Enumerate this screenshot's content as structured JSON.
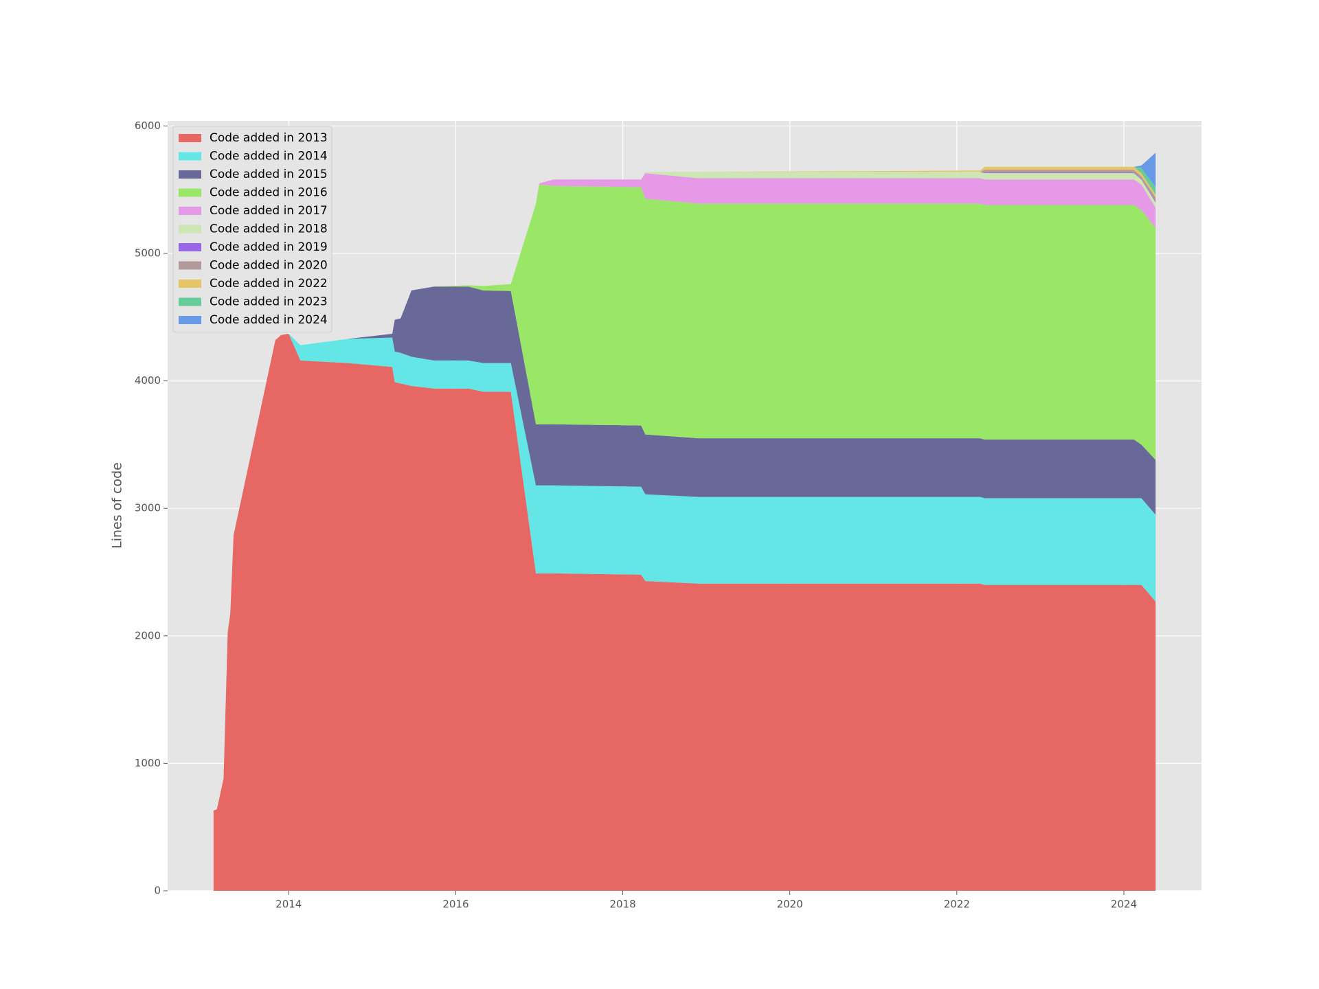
{
  "chart_data": {
    "type": "stackedarea",
    "ylabel": "Lines of code",
    "x": [
      2013.1,
      2013.14,
      2013.22,
      2013.27,
      2013.3,
      2013.34,
      2013.84,
      2013.91,
      2014.0,
      2014.14,
      2014.71,
      2015.24,
      2015.27,
      2015.34,
      2015.47,
      2015.74,
      2016.15,
      2016.33,
      2016.66,
      2016.96,
      2017.0,
      2017.17,
      2018.22,
      2018.27,
      2018.91,
      2022.28,
      2022.33,
      2024.12,
      2024.21,
      2024.38
    ],
    "series": [
      {
        "name": "Code added in 2013",
        "color": "#e66764",
        "values": [
          630,
          640,
          880,
          2030,
          2170,
          2790,
          4320,
          4360,
          4370,
          4160,
          4140,
          4110,
          3990,
          3980,
          3960,
          3940,
          3940,
          3915,
          3915,
          2490,
          2490,
          2490,
          2480,
          2430,
          2410,
          2410,
          2400,
          2400,
          2400,
          2270
        ]
      },
      {
        "name": "Code added in 2014",
        "color": "#64e5e6",
        "values": [
          0,
          0,
          0,
          0,
          0,
          0,
          0,
          0,
          0,
          120,
          190,
          230,
          240,
          240,
          230,
          220,
          220,
          225,
          225,
          690,
          690,
          690,
          690,
          680,
          680,
          680,
          680,
          680,
          680,
          680
        ]
      },
      {
        "name": "Code added in 2015",
        "color": "#686899",
        "values": [
          0,
          0,
          0,
          0,
          0,
          0,
          0,
          0,
          0,
          0,
          0,
          30,
          250,
          270,
          520,
          580,
          580,
          570,
          565,
          480,
          480,
          480,
          480,
          470,
          460,
          460,
          460,
          460,
          420,
          430
        ]
      },
      {
        "name": "Code added in 2016",
        "color": "#9ae666",
        "values": [
          0,
          0,
          0,
          0,
          0,
          0,
          0,
          0,
          0,
          0,
          0,
          0,
          0,
          0,
          0,
          0,
          10,
          35,
          55,
          1730,
          1880,
          1870,
          1870,
          1850,
          1840,
          1840,
          1840,
          1840,
          1840,
          1820
        ]
      },
      {
        "name": "Code added in 2017",
        "color": "#e699e6",
        "values": [
          0,
          0,
          0,
          0,
          0,
          0,
          0,
          0,
          0,
          0,
          0,
          0,
          0,
          0,
          0,
          0,
          0,
          0,
          0,
          0,
          10,
          50,
          60,
          200,
          200,
          200,
          200,
          200,
          200,
          160
        ]
      },
      {
        "name": "Code added in 2018",
        "color": "#cde6b3",
        "values": [
          0,
          0,
          0,
          0,
          0,
          0,
          0,
          0,
          0,
          0,
          0,
          0,
          0,
          0,
          0,
          0,
          0,
          0,
          0,
          0,
          0,
          0,
          0,
          10,
          50,
          50,
          50,
          50,
          40,
          40
        ]
      },
      {
        "name": "Code added in 2019",
        "color": "#9966e6",
        "values": [
          0,
          0,
          0,
          0,
          0,
          0,
          0,
          0,
          0,
          0,
          0,
          0,
          0,
          0,
          0,
          0,
          0,
          0,
          0,
          0,
          0,
          0,
          0,
          0,
          0,
          0,
          5,
          5,
          5,
          10
        ]
      },
      {
        "name": "Code added in 2020",
        "color": "#b39999",
        "values": [
          0,
          0,
          0,
          0,
          0,
          0,
          0,
          0,
          0,
          0,
          0,
          0,
          0,
          0,
          0,
          0,
          0,
          0,
          0,
          0,
          0,
          0,
          0,
          0,
          0,
          0,
          20,
          20,
          20,
          30
        ]
      },
      {
        "name": "Code added in 2022",
        "color": "#e6c566",
        "values": [
          0,
          0,
          0,
          0,
          0,
          0,
          0,
          0,
          0,
          0,
          0,
          0,
          0,
          0,
          0,
          0,
          0,
          0,
          0,
          0,
          0,
          0,
          0,
          0,
          0,
          10,
          25,
          25,
          25,
          20
        ]
      },
      {
        "name": "Code added in 2023",
        "color": "#66cc99",
        "values": [
          0,
          0,
          0,
          0,
          0,
          0,
          0,
          0,
          0,
          0,
          0,
          0,
          0,
          0,
          0,
          0,
          0,
          0,
          0,
          0,
          0,
          0,
          0,
          0,
          0,
          0,
          0,
          0,
          40,
          60
        ]
      },
      {
        "name": "Code added in 2024",
        "color": "#6699e6",
        "values": [
          0,
          0,
          0,
          0,
          0,
          0,
          0,
          0,
          0,
          0,
          0,
          0,
          0,
          0,
          0,
          0,
          0,
          0,
          0,
          0,
          0,
          0,
          0,
          0,
          0,
          0,
          0,
          0,
          20,
          270
        ]
      }
    ],
    "xlim": [
      2012.55,
      2024.93
    ],
    "xticks": [
      2014,
      2016,
      2018,
      2020,
      2022,
      2024
    ],
    "ylim": [
      0,
      6040
    ],
    "yticks": [
      0,
      1000,
      2000,
      3000,
      4000,
      5000,
      6000
    ],
    "grid": true,
    "legend": "upper left"
  }
}
